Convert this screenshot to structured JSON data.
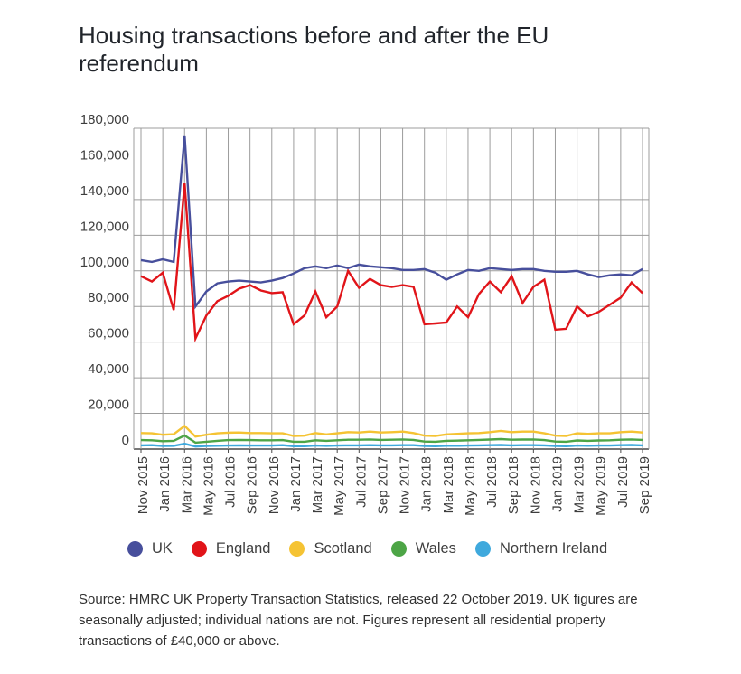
{
  "header": {
    "title": "Housing transactions before and after the EU referendum"
  },
  "chart_data": {
    "type": "line",
    "title": "Housing transactions before and after the EU referendum",
    "xlabel": "",
    "ylabel": "",
    "grid": true,
    "legend_position": "bottom",
    "y_max": 180000,
    "y_ticks": [
      "0",
      "20,000",
      "40,000",
      "60,000",
      "80,000",
      "100,000",
      "120,000",
      "140,000",
      "160,000",
      "180,000"
    ],
    "x_tick_labels": [
      "Nov 2015",
      "Jan 2016",
      "Mar 2016",
      "May 2016",
      "Jul 2016",
      "Sep 2016",
      "Nov 2016",
      "Jan 2017",
      "Mar 2017",
      "May 2017",
      "Jul 2017",
      "Sep 2017",
      "Nov 2017",
      "Jan 2018",
      "Mar 2018",
      "May 2018",
      "Jul 2018",
      "Sep 2018",
      "Nov 2018",
      "Jan 2019",
      "Mar 2019",
      "May 2019",
      "Jul 2019",
      "Sep 2019"
    ],
    "x": [
      "Nov 2015",
      "Dec 2015",
      "Jan 2016",
      "Feb 2016",
      "Mar 2016",
      "Apr 2016",
      "May 2016",
      "Jun 2016",
      "Jul 2016",
      "Aug 2016",
      "Sep 2016",
      "Oct 2016",
      "Nov 2016",
      "Dec 2016",
      "Jan 2017",
      "Feb 2017",
      "Mar 2017",
      "Apr 2017",
      "May 2017",
      "Jun 2017",
      "Jul 2017",
      "Aug 2017",
      "Sep 2017",
      "Oct 2017",
      "Nov 2017",
      "Dec 2017",
      "Jan 2018",
      "Feb 2018",
      "Mar 2018",
      "Apr 2018",
      "May 2018",
      "Jun 2018",
      "Jul 2018",
      "Aug 2018",
      "Sep 2018",
      "Oct 2018",
      "Nov 2018",
      "Dec 2018",
      "Jan 2019",
      "Feb 2019",
      "Mar 2019",
      "Apr 2019",
      "May 2019",
      "Jun 2019",
      "Jul 2019",
      "Aug 2019",
      "Sep 2019"
    ],
    "series": [
      {
        "name": "UK",
        "color": "#474f9c",
        "values": [
          106000,
          105000,
          106500,
          105000,
          176000,
          80000,
          88500,
          93000,
          94000,
          94500,
          94000,
          93500,
          94500,
          96000,
          98500,
          101500,
          102500,
          101500,
          103000,
          101500,
          103500,
          102500,
          102000,
          101500,
          100500,
          100500,
          101000,
          99000,
          95000,
          98000,
          100500,
          100000,
          101500,
          101000,
          100500,
          101000,
          101000,
          100000,
          99500,
          99500,
          100000,
          98000,
          96500,
          97500,
          98000,
          97500,
          101000
        ]
      },
      {
        "name": "England",
        "color": "#e11419",
        "values": [
          97000,
          94000,
          99000,
          78000,
          149000,
          62000,
          75000,
          83000,
          86000,
          90000,
          92000,
          89000,
          87500,
          88000,
          70000,
          75000,
          88500,
          74000,
          80000,
          100000,
          90500,
          95500,
          92000,
          91000,
          92000,
          91000,
          70000,
          70500,
          71000,
          80000,
          74000,
          87000,
          94000,
          88000,
          97000,
          82000,
          91000,
          95000,
          67000,
          67500,
          80000,
          74500,
          77000,
          81000,
          85000,
          93500,
          87500
        ]
      },
      {
        "name": "Scotland",
        "color": "#f5c333",
        "values": [
          9000,
          8800,
          8000,
          8300,
          13000,
          7000,
          8000,
          8800,
          9200,
          9300,
          9000,
          9000,
          8800,
          8800,
          7300,
          7500,
          9000,
          8200,
          8800,
          9500,
          9300,
          9800,
          9300,
          9500,
          9800,
          9000,
          7500,
          7300,
          8200,
          8500,
          8800,
          9000,
          9500,
          10200,
          9500,
          9800,
          9800,
          8800,
          7500,
          7300,
          8800,
          8500,
          8800,
          8800,
          9500,
          9800,
          9300
        ]
      },
      {
        "name": "Wales",
        "color": "#4da546",
        "values": [
          5000,
          4900,
          4400,
          4600,
          7600,
          3600,
          4100,
          4600,
          5000,
          5100,
          5000,
          4900,
          4900,
          5000,
          4100,
          4100,
          4900,
          4600,
          4900,
          5200,
          5200,
          5400,
          5100,
          5200,
          5400,
          5100,
          4200,
          4100,
          4600,
          4700,
          4900,
          5100,
          5300,
          5600,
          5200,
          5300,
          5400,
          5000,
          4200,
          4100,
          4800,
          4600,
          4800,
          4900,
          5200,
          5400,
          5100
        ]
      },
      {
        "name": "Northern Ireland",
        "color": "#3fa9dd",
        "values": [
          2100,
          2200,
          1700,
          1800,
          3000,
          1400,
          1700,
          1900,
          2000,
          2100,
          2000,
          2000,
          2000,
          2200,
          1600,
          1600,
          2000,
          1800,
          2000,
          2100,
          2100,
          2200,
          2100,
          2100,
          2200,
          2200,
          1700,
          1600,
          1900,
          1900,
          2000,
          2100,
          2200,
          2300,
          2100,
          2200,
          2200,
          2100,
          1700,
          1600,
          2000,
          1900,
          2000,
          2000,
          2200,
          2300,
          2100
        ]
      }
    ],
    "colors": {
      "gridline": "#9c9c9c",
      "axis": "#4a4a4a",
      "tick_text": "#3d3d3d"
    }
  },
  "footer": {
    "source": "Source: HMRC UK Property Transaction Statistics, released 22 October 2019. UK figures are seasonally adjusted; individual nations are not. Figures represent all residential property transactions of £40,000 or above."
  }
}
